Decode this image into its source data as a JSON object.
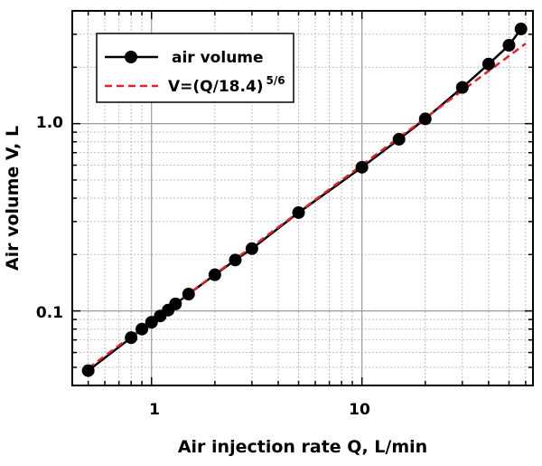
{
  "chart_data": {
    "type": "line",
    "xlabel": "Air injection rate Q, L/min",
    "ylabel": "Air volume V,  L",
    "x_scale": "log",
    "y_scale": "log",
    "xlim": [
      0.42,
      65
    ],
    "ylim": [
      0.04,
      4.0
    ],
    "x_ticks": [
      {
        "value": 1,
        "label": "1"
      },
      {
        "value": 10,
        "label": "10"
      }
    ],
    "y_ticks": [
      {
        "value": 0.1,
        "label": "0.1"
      },
      {
        "value": 1.0,
        "label": "1.0"
      }
    ],
    "grid": true,
    "legend_position": "top-left",
    "series": [
      {
        "name": "air volume",
        "style": "solid-line-with-markers",
        "color": "#000000",
        "x": [
          0.5,
          0.8,
          0.9,
          1.0,
          1.1,
          1.2,
          1.3,
          1.5,
          2.0,
          2.5,
          3.0,
          5.0,
          10.0,
          15.0,
          20.0,
          30.0,
          40.0,
          50.0,
          57.0
        ],
        "y": [
          0.048,
          0.072,
          0.08,
          0.087,
          0.094,
          0.101,
          0.109,
          0.123,
          0.156,
          0.187,
          0.215,
          0.335,
          0.585,
          0.825,
          1.06,
          1.56,
          2.08,
          2.62,
          3.2
        ]
      },
      {
        "name": "V=(Q/18.4)",
        "name_superscript": "5/6",
        "style": "dashed-line",
        "color": "#e8202a",
        "x": [
          0.5,
          60.0
        ],
        "y": [
          0.0494,
          2.676
        ]
      }
    ]
  }
}
